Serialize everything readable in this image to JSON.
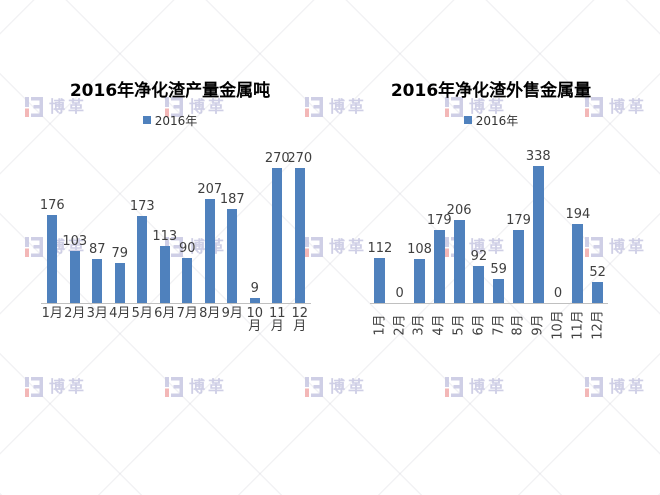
{
  "page": {
    "background": "#FFFFFF"
  },
  "watermark": {
    "brand_text": "博革",
    "icon": "boge-logo-icon",
    "text_color": "#C7C7E2",
    "accent_color": "#F2ABAB"
  },
  "chart_data": [
    {
      "type": "bar",
      "title": "2016年净化渣产量金属吨",
      "legend": [
        {
          "label": "2016年",
          "color": "#4F81BD"
        }
      ],
      "legend_position": "top",
      "categories": [
        "1月",
        "2月",
        "3月",
        "4月",
        "5月",
        "6月",
        "7月",
        "8月",
        "9月",
        "10月",
        "11月",
        "12月"
      ],
      "values": [
        176,
        103,
        87,
        79,
        173,
        113,
        90,
        207,
        187,
        9,
        270,
        270
      ],
      "bar_color": "#4F81BD",
      "value_labels": true,
      "x_label_rotation": 0,
      "y_axis_visible": false,
      "grid": false,
      "axis_line_color": "#C0C0C0"
    },
    {
      "type": "bar",
      "title": "2016年净化渣外售金属量",
      "legend": [
        {
          "label": "2016年",
          "color": "#4F81BD"
        }
      ],
      "legend_position": "top",
      "categories": [
        "1月",
        "2月",
        "3月",
        "4月",
        "5月",
        "6月",
        "7月",
        "8月",
        "9月",
        "10月",
        "11月",
        "12月"
      ],
      "values": [
        112,
        0,
        108,
        179,
        206,
        92,
        59,
        179,
        338,
        0,
        194,
        52
      ],
      "bar_color": "#4F81BD",
      "value_labels": true,
      "x_label_rotation": -90,
      "y_axis_visible": false,
      "grid": false,
      "axis_line_color": "#C0C0C0"
    }
  ]
}
